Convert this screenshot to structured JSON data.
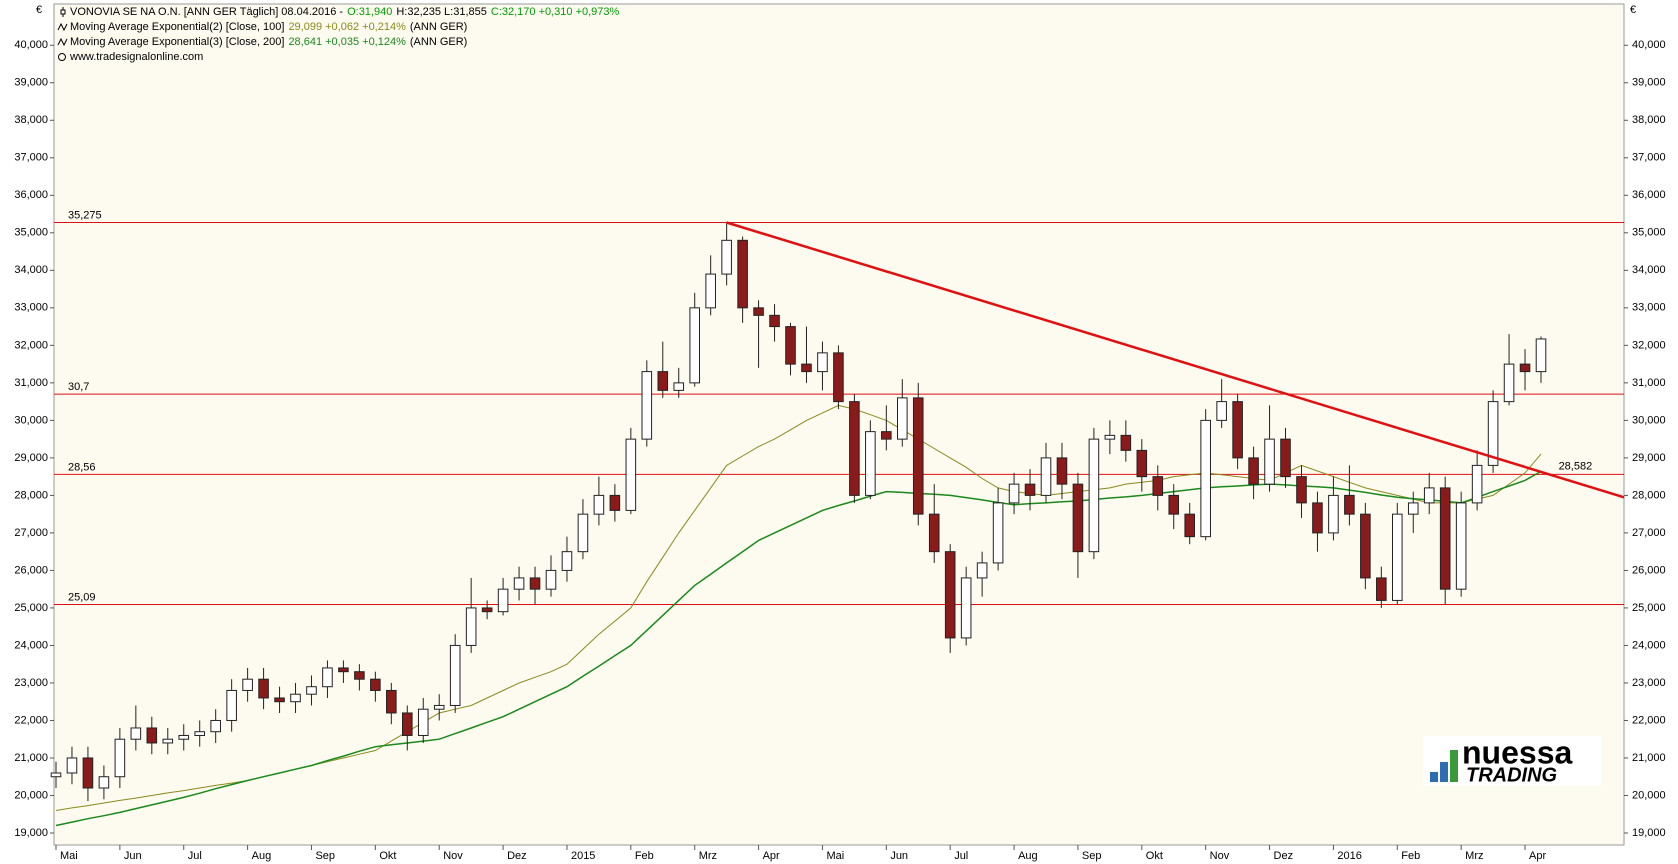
{
  "chart_data": {
    "type": "candlestick",
    "currency": "€",
    "title": "VONOVIA SE NA O.N. [ANN GER  Täglich] 08.04.2016 -",
    "quote": [
      {
        "text": "O:31,940",
        "color": "#00a000"
      },
      {
        "text": "H:32,235 L:31,855",
        "color": "#000000"
      },
      {
        "text": "C:32,170 +0,310 +0,973%",
        "color": "#00a000"
      }
    ],
    "source": "www.tradesignalonline.com",
    "logo": [
      "nuessa",
      "TRADING"
    ],
    "up_color": "#ffffff",
    "down_color": "#8b1a1a",
    "categories": [
      "Mai",
      null,
      null,
      null,
      "Jun",
      null,
      null,
      null,
      "Jul",
      null,
      null,
      null,
      "Aug",
      null,
      null,
      null,
      "Sep",
      null,
      null,
      null,
      "Okt",
      null,
      null,
      null,
      "Nov",
      null,
      null,
      null,
      "Dez",
      null,
      null,
      null,
      "2015",
      null,
      null,
      null,
      "Feb",
      null,
      null,
      null,
      "Mrz",
      null,
      null,
      null,
      "Apr",
      null,
      null,
      null,
      "Mai",
      null,
      null,
      null,
      "Jun",
      null,
      null,
      null,
      "Jul",
      null,
      null,
      null,
      "Aug",
      null,
      null,
      null,
      "Sep",
      null,
      null,
      null,
      "Okt",
      null,
      null,
      null,
      "Nov",
      null,
      null,
      null,
      "Dez",
      null,
      null,
      null,
      "2016",
      null,
      null,
      null,
      "Feb",
      null,
      null,
      null,
      "Mrz",
      null,
      null,
      null,
      "Apr",
      null
    ],
    "open": [
      20.5,
      20.6,
      21.0,
      20.2,
      20.5,
      21.5,
      21.8,
      21.4,
      21.5,
      21.6,
      21.7,
      22.0,
      22.8,
      23.1,
      22.6,
      22.5,
      22.7,
      22.9,
      23.4,
      23.3,
      23.1,
      22.8,
      22.2,
      21.6,
      22.3,
      22.4,
      24.0,
      25.0,
      24.9,
      25.5,
      25.8,
      25.5,
      26.0,
      26.5,
      27.5,
      28.0,
      27.6,
      29.5,
      31.3,
      30.8,
      31.0,
      33.0,
      33.9,
      34.8,
      33.0,
      32.8,
      32.5,
      31.5,
      31.3,
      31.8,
      30.5,
      28.0,
      29.7,
      29.5,
      30.6,
      27.5,
      26.5,
      24.2,
      25.8,
      26.2,
      27.8,
      28.3,
      28.0,
      29.0,
      28.3,
      26.5,
      29.5,
      29.6,
      29.2,
      28.5,
      28.0,
      27.5,
      26.9,
      30.0,
      30.5,
      29.0,
      28.3,
      29.5,
      28.5,
      27.8,
      27.0,
      28.0,
      27.5,
      25.8,
      25.2,
      27.5,
      27.8,
      28.2,
      25.5,
      27.8,
      28.8,
      30.5,
      31.5,
      31.3
    ],
    "high": [
      20.9,
      21.3,
      21.3,
      20.8,
      21.8,
      22.4,
      22.1,
      21.8,
      21.9,
      22.0,
      22.3,
      23.1,
      23.4,
      23.4,
      22.9,
      23.0,
      23.2,
      23.6,
      23.6,
      23.5,
      23.3,
      23.0,
      22.4,
      22.6,
      22.7,
      24.3,
      25.8,
      25.2,
      25.8,
      26.1,
      26.1,
      26.4,
      26.9,
      27.9,
      28.5,
      28.3,
      29.8,
      31.6,
      32.1,
      31.4,
      33.4,
      34.4,
      35.275,
      34.9,
      33.2,
      33.1,
      32.6,
      32.5,
      32.1,
      32.0,
      30.7,
      30.0,
      30.4,
      31.1,
      31.0,
      28.3,
      26.7,
      26.1,
      26.5,
      28.2,
      28.6,
      28.7,
      29.4,
      29.4,
      28.6,
      29.8,
      30.0,
      30.0,
      29.5,
      28.8,
      28.3,
      27.8,
      30.3,
      31.1,
      30.7,
      29.3,
      30.4,
      29.8,
      28.8,
      28.1,
      28.5,
      28.8,
      27.8,
      26.1,
      27.8,
      28.1,
      28.6,
      28.5,
      28.1,
      29.2,
      30.8,
      32.3,
      31.9,
      32.235
    ],
    "low": [
      20.2,
      20.3,
      19.85,
      19.9,
      20.2,
      21.2,
      21.1,
      21.1,
      21.2,
      21.3,
      21.4,
      21.7,
      22.5,
      22.3,
      22.2,
      22.2,
      22.4,
      22.6,
      23.0,
      22.8,
      22.5,
      21.9,
      21.2,
      21.4,
      22.0,
      22.2,
      23.8,
      24.7,
      24.8,
      25.2,
      25.1,
      25.3,
      25.7,
      26.3,
      27.2,
      27.3,
      27.5,
      29.3,
      30.6,
      30.6,
      30.9,
      32.8,
      33.6,
      32.6,
      31.4,
      32.1,
      31.2,
      31.0,
      30.8,
      30.3,
      27.8,
      27.9,
      29.2,
      29.3,
      27.2,
      26.2,
      23.8,
      24.0,
      25.3,
      26.0,
      27.5,
      27.6,
      27.8,
      27.9,
      25.8,
      26.3,
      29.1,
      28.9,
      28.1,
      27.6,
      27.1,
      26.7,
      26.8,
      29.8,
      28.7,
      27.9,
      28.1,
      28.2,
      27.4,
      26.5,
      26.8,
      27.2,
      25.5,
      25.0,
      25.1,
      27.0,
      27.5,
      25.1,
      25.3,
      27.6,
      28.6,
      30.4,
      30.8,
      31.0
    ],
    "close": [
      20.6,
      21.0,
      20.2,
      20.5,
      21.5,
      21.8,
      21.4,
      21.5,
      21.6,
      21.7,
      22.0,
      22.8,
      23.1,
      22.6,
      22.5,
      22.7,
      22.9,
      23.4,
      23.3,
      23.1,
      22.8,
      22.2,
      21.6,
      22.3,
      22.4,
      24.0,
      25.0,
      24.9,
      25.5,
      25.8,
      25.5,
      26.0,
      26.5,
      27.5,
      28.0,
      27.6,
      29.5,
      31.3,
      30.8,
      31.0,
      33.0,
      33.9,
      34.8,
      33.0,
      32.8,
      32.5,
      31.5,
      31.3,
      31.8,
      30.5,
      28.0,
      29.7,
      29.5,
      30.6,
      27.5,
      26.5,
      24.2,
      25.8,
      26.2,
      27.8,
      28.3,
      28.0,
      29.0,
      28.3,
      26.5,
      29.5,
      29.6,
      29.2,
      28.5,
      28.0,
      27.5,
      26.9,
      30.0,
      30.5,
      29.0,
      28.3,
      29.5,
      28.5,
      27.8,
      27.0,
      28.0,
      27.5,
      25.8,
      25.2,
      27.5,
      27.8,
      28.2,
      25.5,
      27.8,
      28.8,
      30.5,
      31.5,
      31.3,
      32.17
    ],
    "series": [
      {
        "name": "Moving Average Exponential(2) [Close, 100]",
        "info": "29,099 +0,062 +0,214%",
        "source": "(ANN GER)",
        "color": "#8a8a1a",
        "values": [
          19.6,
          19.67,
          19.73,
          19.8,
          19.87,
          19.93,
          20.0,
          20.07,
          20.13,
          20.2,
          20.27,
          20.33,
          20.4,
          20.5,
          20.6,
          20.7,
          20.8,
          20.9,
          21.0,
          21.1,
          21.2,
          21.45,
          21.7,
          21.95,
          22.2,
          22.3,
          22.4,
          22.6,
          22.8,
          23.0,
          23.15,
          23.3,
          23.5,
          23.9,
          24.3,
          24.65,
          25.0,
          25.7,
          26.35,
          27.0,
          27.6,
          28.2,
          28.8,
          29.05,
          29.3,
          29.5,
          29.75,
          30.0,
          30.2,
          30.4,
          30.3,
          30.15,
          30.0,
          29.75,
          29.5,
          29.25,
          29.0,
          28.75,
          28.45,
          28.2,
          28.1,
          28.05,
          28.0,
          28.05,
          28.1,
          28.15,
          28.2,
          28.3,
          28.35,
          28.4,
          28.5,
          28.55,
          28.6,
          28.55,
          28.5,
          28.45,
          28.4,
          28.6,
          28.8,
          28.65,
          28.5,
          28.35,
          28.2,
          28.1,
          28.0,
          27.9,
          27.8,
          27.8,
          27.8,
          27.9,
          28.0,
          28.3,
          28.6,
          29.1
        ]
      },
      {
        "name": "Moving Average Exponential(3) [Close, 200]",
        "info": "28,641 +0,035 +0,124%",
        "source": "(ANN GER)",
        "color": "#1a8a1a",
        "values": [
          19.2,
          19.29,
          19.38,
          19.46,
          19.55,
          19.65,
          19.75,
          19.85,
          19.95,
          20.06,
          20.18,
          20.29,
          20.4,
          20.5,
          20.6,
          20.7,
          20.8,
          20.93,
          21.05,
          21.18,
          21.3,
          21.35,
          21.4,
          21.45,
          21.5,
          21.65,
          21.8,
          21.95,
          22.1,
          22.3,
          22.5,
          22.7,
          22.9,
          23.18,
          23.45,
          23.73,
          24.0,
          24.4,
          24.8,
          25.2,
          25.6,
          25.9,
          26.2,
          26.5,
          26.8,
          27.0,
          27.2,
          27.4,
          27.6,
          27.73,
          27.85,
          27.98,
          28.1,
          28.08,
          28.05,
          28.03,
          28.0,
          27.94,
          27.88,
          27.81,
          27.75,
          27.78,
          27.8,
          27.83,
          27.85,
          27.89,
          27.93,
          27.96,
          28.0,
          28.05,
          28.1,
          28.15,
          28.2,
          28.23,
          28.25,
          28.28,
          28.3,
          28.28,
          28.25,
          28.23,
          28.2,
          28.14,
          28.08,
          28.01,
          27.95,
          27.91,
          27.88,
          27.84,
          27.8,
          27.95,
          28.1,
          28.25,
          28.4,
          28.64
        ]
      }
    ],
    "levels": [
      {
        "value": 35.275,
        "label": "35,275"
      },
      {
        "value": 30.7,
        "label": "30,7"
      },
      {
        "value": 28.56,
        "label": "28,56"
      },
      {
        "value": 25.09,
        "label": "25,09"
      }
    ],
    "level_color": "#e01010",
    "trendline": [
      35.275,
      27.95
    ],
    "cross_label": {
      "value": 28.582,
      "label": "28,582"
    },
    "ylim": [
      18.68,
      41.1
    ],
    "yticks": [
      {
        "value": 19,
        "label": "19,000"
      },
      {
        "value": 20,
        "label": "20,000"
      },
      {
        "value": 21,
        "label": "21,000"
      },
      {
        "value": 22,
        "label": "22,000"
      },
      {
        "value": 23,
        "label": "23,000"
      },
      {
        "value": 24,
        "label": "24,000"
      },
      {
        "value": 25,
        "label": "25,000"
      },
      {
        "value": 26,
        "label": "26,000"
      },
      {
        "value": 27,
        "label": "27,000"
      },
      {
        "value": 28,
        "label": "28,000"
      },
      {
        "value": 29,
        "label": "29,000"
      },
      {
        "value": 30,
        "label": "30,000"
      },
      {
        "value": 31,
        "label": "31,000"
      },
      {
        "value": 32,
        "label": "32,000"
      },
      {
        "value": 33,
        "label": "33,000"
      },
      {
        "value": 34,
        "label": "34,000"
      },
      {
        "value": 35,
        "label": "35,000"
      },
      {
        "value": 36,
        "label": "36,000"
      },
      {
        "value": 37,
        "label": "37,000"
      },
      {
        "value": 38,
        "label": "38,000"
      },
      {
        "value": 39,
        "label": "39,000"
      },
      {
        "value": 40,
        "label": "40,000"
      }
    ]
  }
}
